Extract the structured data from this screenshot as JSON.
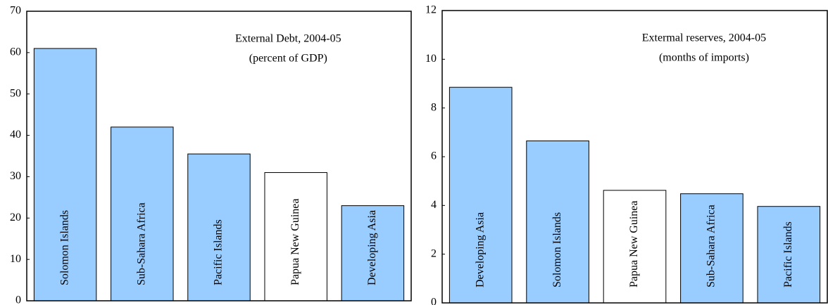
{
  "chart_data": [
    {
      "type": "bar",
      "title": "External Debt, 2004-05",
      "subtitle": "(percent of GDP)",
      "categories": [
        "Solomon Islands",
        "Sub-Sahara Africa",
        "Pacific Islands",
        "Papua New Guinea",
        "Developing Asia"
      ],
      "values": [
        61,
        42,
        35.5,
        31,
        23
      ],
      "colors": [
        "#99ccff",
        "#99ccff",
        "#99ccff",
        "#ffffff",
        "#99ccff"
      ],
      "ylim": [
        0,
        70
      ],
      "yticks": [
        0,
        10,
        20,
        30,
        40,
        50,
        60,
        70
      ]
    },
    {
      "type": "bar",
      "title": "Extermal reserves, 2004-05",
      "subtitle": "(months of imports)",
      "categories": [
        "Developing Asia",
        "Solomon Islands",
        "Papua New Guinea",
        "Sub-Sahara Africa",
        "Pacific Islands"
      ],
      "values": [
        8.85,
        6.65,
        4.62,
        4.48,
        3.96
      ],
      "colors": [
        "#99ccff",
        "#99ccff",
        "#ffffff",
        "#99ccff",
        "#99ccff"
      ],
      "ylim": [
        0,
        12
      ],
      "yticks": [
        0,
        2,
        4,
        6,
        8,
        10,
        12
      ]
    }
  ]
}
